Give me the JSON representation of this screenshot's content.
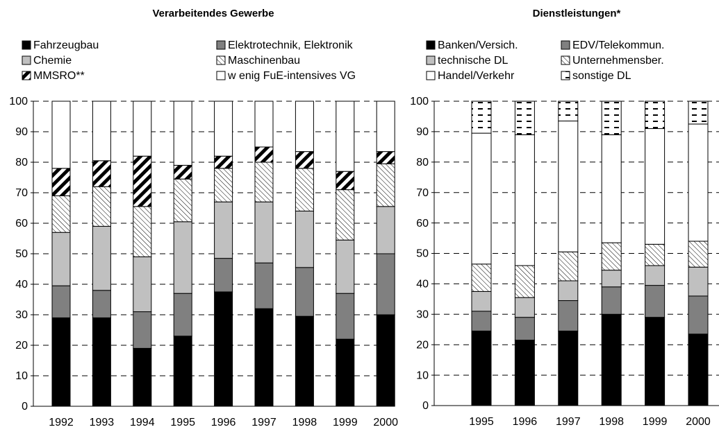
{
  "chart_data": [
    {
      "type": "stacked_bar",
      "title": "Verarbeitendes Gewerbe",
      "categories": [
        "1992",
        "1993",
        "1994",
        "1995",
        "1996",
        "1997",
        "1998",
        "1999",
        "2000"
      ],
      "ylim": [
        0,
        100
      ],
      "yticks": [
        0,
        10,
        20,
        30,
        40,
        50,
        60,
        70,
        80,
        90,
        100
      ],
      "grid": true,
      "series": [
        {
          "name": "Fahrzeugbau",
          "color": "#000000",
          "values": [
            29,
            29,
            19,
            23,
            37.5,
            32,
            29.5,
            22,
            30
          ]
        },
        {
          "name": "Elektrotechnik, Elektronik",
          "color": "#808080",
          "values": [
            10.5,
            9,
            12,
            14,
            11,
            15,
            16,
            15,
            20
          ]
        },
        {
          "name": "Chemie",
          "color": "#c0c0c0",
          "values": [
            17.5,
            21,
            18,
            23.5,
            18.5,
            20,
            18.5,
            17.5,
            15.5
          ]
        },
        {
          "name": "Maschinenbau",
          "color": "#ffffff",
          "pattern": "hatch",
          "values": [
            12,
            13,
            16.5,
            14,
            11,
            13,
            14,
            16.5,
            14
          ]
        },
        {
          "name": "MMSRO**",
          "color": "#ffffff",
          "pattern": "stripe",
          "values": [
            9,
            8.5,
            16.5,
            4.5,
            4,
            5,
            5.5,
            6,
            4
          ]
        },
        {
          "name": "w enig FuE-intensives VG",
          "color": "#ffffff",
          "values": [
            22,
            19.5,
            18,
            21,
            18,
            15,
            16.5,
            23,
            16.5
          ]
        }
      ]
    },
    {
      "type": "stacked_bar",
      "title": "Dienstleistungen*",
      "categories": [
        "1995",
        "1996",
        "1997",
        "1998",
        "1999",
        "2000"
      ],
      "ylim": [
        0,
        100
      ],
      "yticks": [
        0,
        10,
        20,
        30,
        40,
        50,
        60,
        70,
        80,
        90,
        100
      ],
      "grid": true,
      "series": [
        {
          "name": "Banken/Versich.",
          "color": "#000000",
          "values": [
            24.5,
            21.5,
            24.5,
            30,
            29,
            23.5
          ]
        },
        {
          "name": "EDV/Telekommun.",
          "color": "#808080",
          "values": [
            6.5,
            7.5,
            10,
            9,
            10.5,
            12.5
          ]
        },
        {
          "name": "technische DL",
          "color": "#c0c0c0",
          "values": [
            6.5,
            6.5,
            6.5,
            5.5,
            6.5,
            9.5
          ]
        },
        {
          "name": "Unternehmensber.",
          "color": "#ffffff",
          "pattern": "hatch",
          "values": [
            9,
            10.5,
            9.5,
            9,
            7,
            8.5
          ]
        },
        {
          "name": "Handel/Verkehr",
          "color": "#ffffff",
          "values": [
            43,
            43,
            43,
            35.5,
            38,
            38.5
          ]
        },
        {
          "name": "sonstige DL",
          "color": "#ffffff",
          "pattern": "dash",
          "values": [
            10.5,
            11,
            6.5,
            11,
            9,
            7.5
          ]
        }
      ]
    }
  ]
}
